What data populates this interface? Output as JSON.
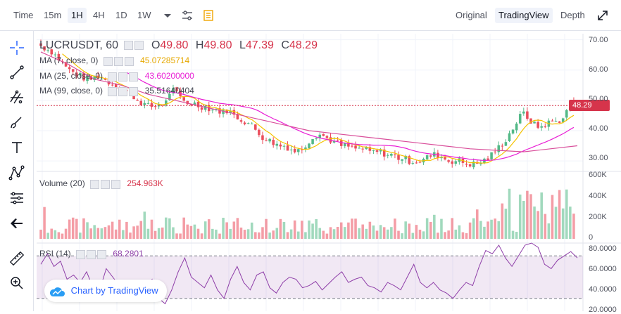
{
  "toolbar": {
    "time_label": "Time",
    "intervals": [
      "15m",
      "1H",
      "4H",
      "1D",
      "1W"
    ],
    "active_interval": "1H",
    "views": [
      "Original",
      "TradingView",
      "Depth"
    ],
    "active_view": "TradingView"
  },
  "legend": {
    "symbol": "LUCRUSDT, 60",
    "open_label": "O",
    "open": "49.80",
    "high_label": "H",
    "high": "49.80",
    "low_label": "L",
    "low": "47.39",
    "close_label": "C",
    "close": "48.29",
    "ma7_label": "MA (7, close, 0)",
    "ma7_value": "45.07285714",
    "ma25_label": "MA (25, close, 0)",
    "ma25_value": "43.60200000",
    "ma99_label": "MA (99, close, 0)",
    "ma99_value": "35.51640404",
    "volume_label": "Volume (20)",
    "volume_value": "254.963K",
    "rsi_label": "RSI (14)",
    "rsi_value": "68.2801"
  },
  "price_tag": "48.29",
  "axes": {
    "price_ticks": [
      "70.00",
      "60.00",
      "50.00",
      "40.00",
      "30.00"
    ],
    "volume_ticks": [
      "600K",
      "400K",
      "200K",
      "0"
    ],
    "rsi_ticks": [
      "80.0000",
      "60.0000",
      "40.0000",
      "20.0000"
    ]
  },
  "watermark": "Chart by TradingView",
  "colors": {
    "up": "#53b987",
    "down": "#eb4d5c",
    "ma7": "#f5c200",
    "ma25": "#e91ed5",
    "ma99": "#d94f9b",
    "rsi": "#8e3ea8",
    "price_line": "#d6344b"
  },
  "icons": [
    "crosshair-icon",
    "trendline-icon",
    "fib-icon",
    "brush-icon",
    "text-icon",
    "pattern-icon",
    "measure-icon",
    "back-arrow-icon",
    "ruler-icon",
    "zoom-icon",
    "settings-icon",
    "indicators-icon",
    "fullscreen-icon",
    "dropdown-icon"
  ],
  "chart_data": {
    "type": "candlestick",
    "price_range": [
      27,
      72
    ],
    "rsi_range": [
      18,
      82
    ],
    "ohlc_summary": {
      "open": 49.8,
      "high": 49.8,
      "low": 47.39,
      "close": 48.29
    },
    "close_path": [
      68,
      67,
      66,
      64,
      62,
      60,
      59,
      58,
      57,
      57,
      58,
      57,
      56,
      55,
      54,
      53,
      52,
      50,
      49,
      48,
      48,
      49,
      49,
      54,
      52,
      50,
      49,
      49,
      48,
      48,
      47,
      47,
      46,
      47,
      45,
      44,
      43,
      42,
      40,
      38,
      37,
      36,
      35,
      35,
      34,
      33,
      34,
      36,
      38,
      39,
      38,
      37,
      36,
      35,
      35,
      34,
      34,
      34,
      33,
      33,
      33,
      32,
      32,
      31,
      31,
      30,
      30,
      30,
      31,
      32,
      32,
      31,
      30,
      30,
      30,
      29,
      29,
      29,
      30,
      31,
      33,
      35,
      37,
      40,
      43,
      46,
      44,
      42,
      41,
      42,
      43,
      43,
      44,
      47,
      48
    ],
    "ma99_path": [
      66,
      62,
      57,
      55,
      52,
      50,
      48,
      46,
      44,
      42,
      40,
      39,
      38,
      37,
      36,
      35,
      34,
      33.5,
      33,
      34,
      35
    ],
    "rsi_path": [
      62,
      72,
      60,
      65,
      48,
      52,
      45,
      55,
      40,
      38,
      58,
      50,
      42,
      38,
      36,
      35,
      40,
      48,
      30,
      25,
      38,
      55,
      68,
      50,
      45,
      40,
      52,
      38,
      30,
      48,
      60,
      45,
      38,
      52,
      55,
      40,
      35,
      45,
      50,
      48,
      40,
      42,
      46,
      38,
      44,
      50,
      55,
      45,
      48,
      50,
      42,
      40,
      36,
      45,
      42,
      38,
      50,
      62,
      45,
      40,
      45,
      38,
      35,
      30,
      38,
      45,
      42,
      60,
      75,
      72,
      80,
      68,
      60,
      70,
      80,
      82,
      78,
      62,
      58,
      66,
      70,
      74,
      68
    ]
  }
}
